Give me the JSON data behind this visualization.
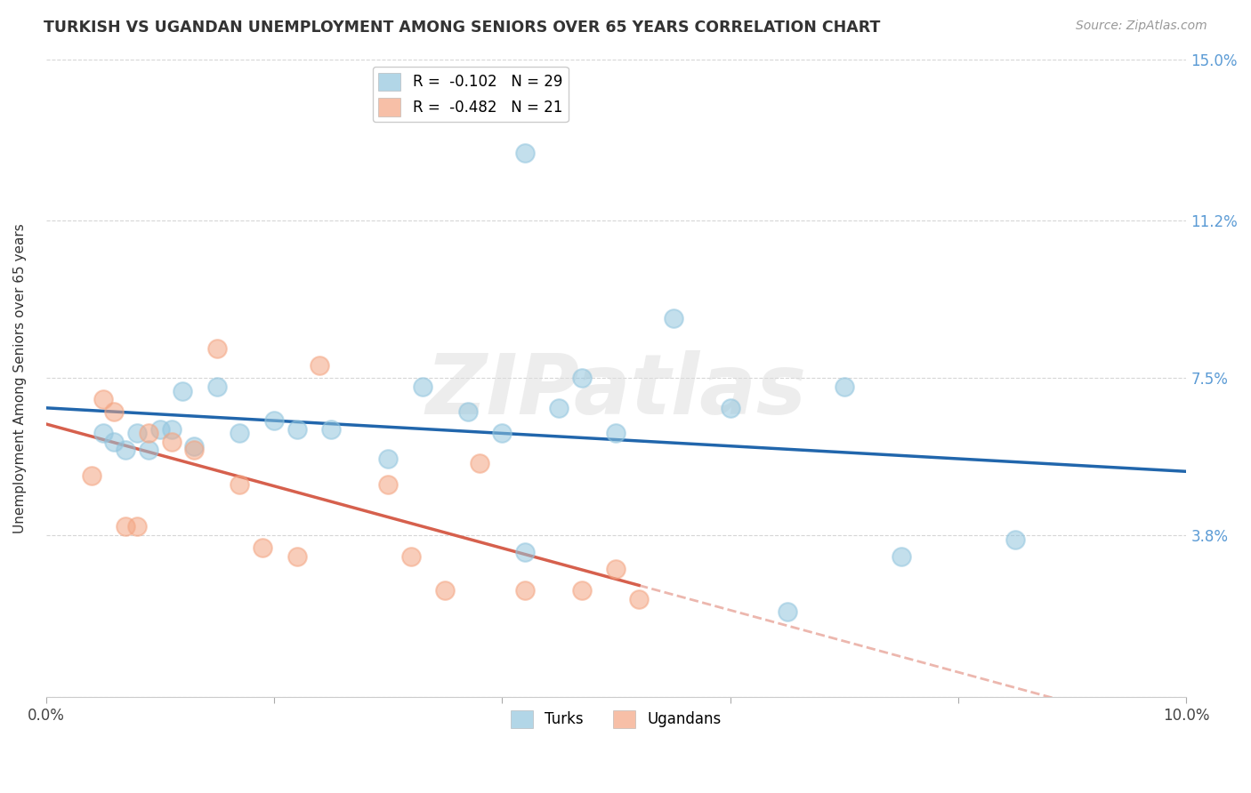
{
  "title": "TURKISH VS UGANDAN UNEMPLOYMENT AMONG SENIORS OVER 65 YEARS CORRELATION CHART",
  "source": "Source: ZipAtlas.com",
  "ylabel": "Unemployment Among Seniors over 65 years",
  "xlim": [
    0.0,
    0.1
  ],
  "ylim": [
    0.0,
    0.15
  ],
  "turks_x": [
    0.005,
    0.006,
    0.007,
    0.008,
    0.009,
    0.01,
    0.011,
    0.012,
    0.013,
    0.015,
    0.017,
    0.02,
    0.022,
    0.025,
    0.03,
    0.033,
    0.037,
    0.04,
    0.042,
    0.045,
    0.047,
    0.05,
    0.055,
    0.06,
    0.065,
    0.07,
    0.075,
    0.085,
    0.042
  ],
  "turks_y": [
    0.062,
    0.06,
    0.058,
    0.062,
    0.058,
    0.063,
    0.063,
    0.072,
    0.059,
    0.073,
    0.062,
    0.065,
    0.063,
    0.063,
    0.056,
    0.073,
    0.067,
    0.062,
    0.034,
    0.068,
    0.075,
    0.062,
    0.089,
    0.068,
    0.02,
    0.073,
    0.033,
    0.037,
    0.128
  ],
  "ugandans_x": [
    0.004,
    0.005,
    0.006,
    0.007,
    0.008,
    0.009,
    0.011,
    0.013,
    0.015,
    0.017,
    0.019,
    0.022,
    0.024,
    0.03,
    0.032,
    0.035,
    0.038,
    0.042,
    0.047,
    0.05,
    0.052
  ],
  "ugandans_y": [
    0.052,
    0.07,
    0.067,
    0.04,
    0.04,
    0.062,
    0.06,
    0.058,
    0.082,
    0.05,
    0.035,
    0.033,
    0.078,
    0.05,
    0.033,
    0.025,
    0.055,
    0.025,
    0.025,
    0.03,
    0.023
  ],
  "turks_color": "#92c5de",
  "ugandans_color": "#f4a582",
  "turks_line_color": "#2166ac",
  "ugandans_line_color": "#d6604d",
  "turks_R": "-0.102",
  "turks_N": "29",
  "ugandans_R": "-0.482",
  "ugandans_N": "21",
  "watermark": "ZIPatlas",
  "background_color": "#ffffff",
  "grid_color": "#cccccc",
  "title_color": "#333333",
  "source_color": "#999999",
  "right_axis_color": "#5b9bd5",
  "right_yticks": [
    0.0,
    0.038,
    0.075,
    0.112,
    0.15
  ],
  "right_ytick_labels": [
    "",
    "3.8%",
    "7.5%",
    "11.2%",
    "15.0%"
  ]
}
